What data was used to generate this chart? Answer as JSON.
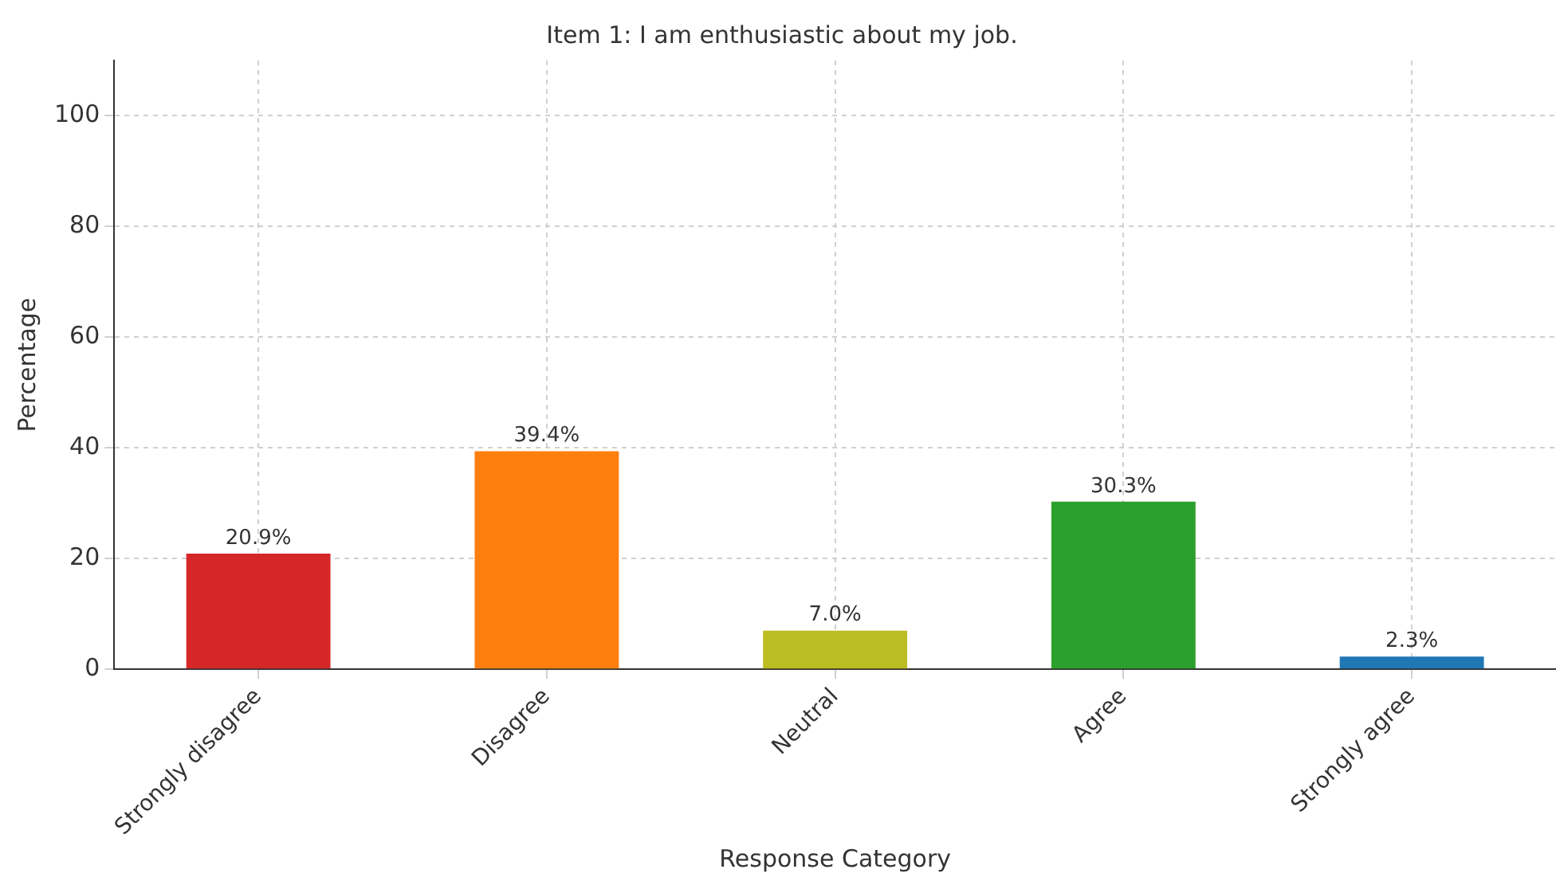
{
  "chart_data": {
    "type": "bar",
    "title": "Item 1: I am enthusiastic about my job.",
    "xlabel": "Response Category",
    "ylabel": "Percentage",
    "categories": [
      "Strongly disagree",
      "Disagree",
      "Neutral",
      "Agree",
      "Strongly agree"
    ],
    "values": [
      20.9,
      39.4,
      7.0,
      30.3,
      2.3
    ],
    "colors": [
      "#d62728",
      "#ff7f0e",
      "#bcbd22",
      "#2ca02c",
      "#1f77b4"
    ],
    "value_labels": [
      "20.9%",
      "39.4%",
      "7.0%",
      "30.3%",
      "2.3%"
    ],
    "ylim": [
      0,
      110
    ],
    "yticks": [
      0,
      20,
      40,
      60,
      80,
      100
    ],
    "grid": true,
    "legend": false
  }
}
